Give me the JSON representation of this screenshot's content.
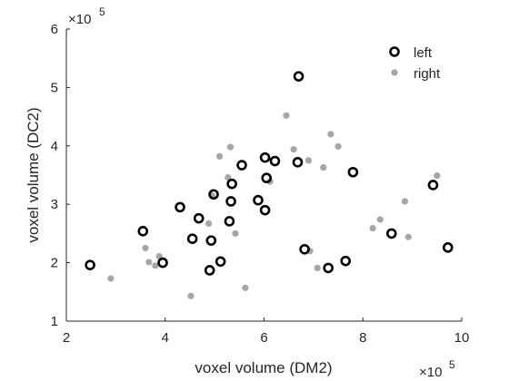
{
  "chart_data": {
    "type": "scatter",
    "xlabel": "voxel volume (DM2)",
    "ylabel": "voxel volume (DC2)",
    "x_exponent_label": "×10",
    "x_exponent_power": "5",
    "y_exponent_label": "×10",
    "y_exponent_power": "5",
    "xlim": [
      2,
      10
    ],
    "ylim": [
      1,
      6
    ],
    "xticks": [
      2,
      4,
      6,
      8,
      10
    ],
    "yticks": [
      1,
      2,
      3,
      4,
      5,
      6
    ],
    "xtick_labels": [
      "2",
      "4",
      "6",
      "8",
      "10"
    ],
    "ytick_labels": [
      "1",
      "2",
      "3",
      "4",
      "5",
      "6"
    ],
    "grid": false,
    "legend_position": "top-right",
    "series": [
      {
        "name": "left",
        "marker": "open-circle",
        "color": "#000000",
        "points": [
          [
            2.48,
            1.96
          ],
          [
            3.95,
            2.0
          ],
          [
            3.55,
            2.54
          ],
          [
            4.3,
            2.95
          ],
          [
            4.55,
            2.41
          ],
          [
            4.68,
            2.76
          ],
          [
            4.9,
            1.87
          ],
          [
            4.93,
            2.38
          ],
          [
            4.98,
            3.17
          ],
          [
            5.12,
            2.02
          ],
          [
            5.3,
            2.71
          ],
          [
            5.33,
            3.05
          ],
          [
            5.35,
            3.35
          ],
          [
            5.55,
            3.67
          ],
          [
            5.88,
            3.07
          ],
          [
            6.02,
            2.9
          ],
          [
            6.02,
            3.8
          ],
          [
            6.05,
            3.45
          ],
          [
            6.22,
            3.74
          ],
          [
            6.68,
            3.72
          ],
          [
            6.7,
            5.19
          ],
          [
            6.82,
            2.23
          ],
          [
            7.3,
            1.91
          ],
          [
            7.65,
            2.03
          ],
          [
            7.8,
            3.55
          ],
          [
            8.58,
            2.5
          ],
          [
            9.42,
            3.33
          ],
          [
            9.72,
            2.26
          ]
        ]
      },
      {
        "name": "right",
        "marker": "filled-dot",
        "color": "#a6a6a6",
        "points": [
          [
            2.9,
            1.73
          ],
          [
            3.6,
            2.25
          ],
          [
            3.67,
            2.01
          ],
          [
            3.8,
            1.95
          ],
          [
            3.88,
            2.11
          ],
          [
            4.52,
            1.43
          ],
          [
            4.88,
            2.67
          ],
          [
            4.95,
            3.15
          ],
          [
            5.1,
            3.82
          ],
          [
            5.27,
            3.46
          ],
          [
            5.32,
            3.98
          ],
          [
            5.42,
            2.5
          ],
          [
            5.62,
            1.57
          ],
          [
            6.12,
            3.39
          ],
          [
            6.45,
            4.52
          ],
          [
            6.6,
            3.94
          ],
          [
            6.9,
            3.75
          ],
          [
            6.93,
            2.2
          ],
          [
            7.08,
            1.91
          ],
          [
            7.2,
            3.63
          ],
          [
            7.35,
            4.2
          ],
          [
            7.5,
            3.99
          ],
          [
            8.2,
            2.59
          ],
          [
            8.35,
            2.74
          ],
          [
            8.85,
            3.05
          ],
          [
            8.92,
            2.44
          ],
          [
            9.5,
            3.49
          ]
        ]
      }
    ]
  }
}
